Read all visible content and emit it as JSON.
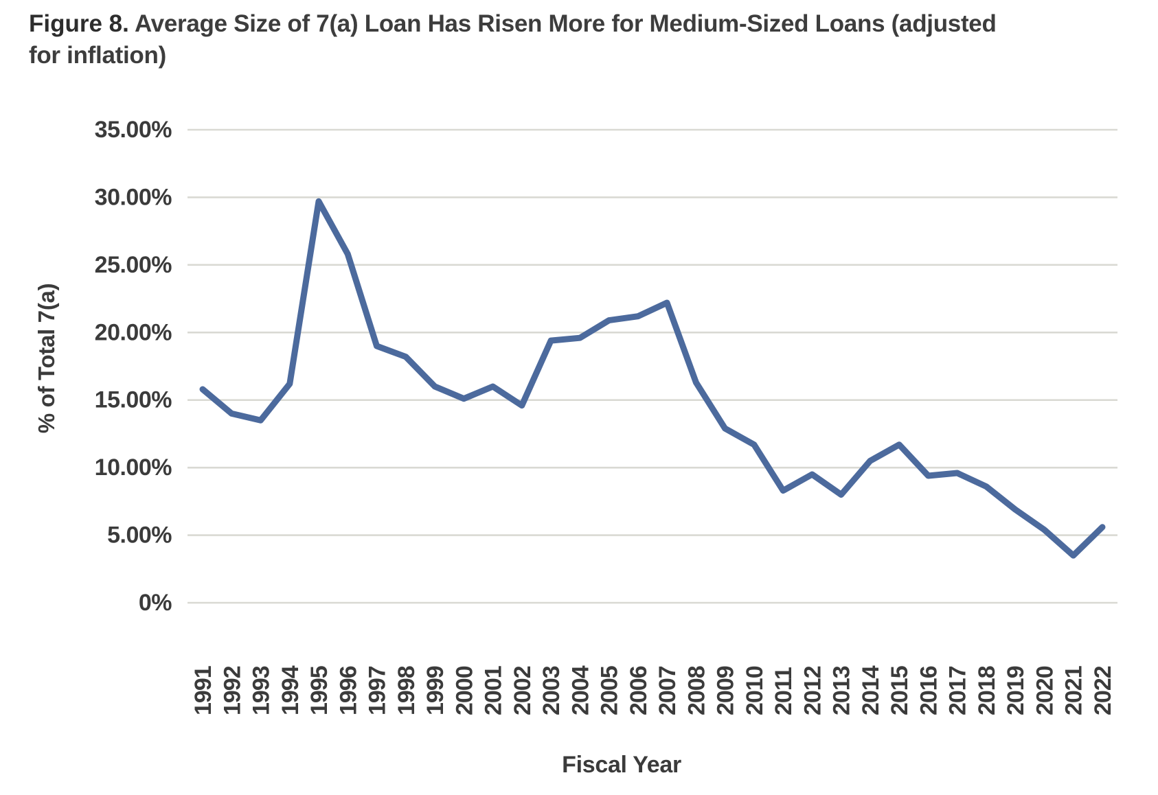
{
  "title": {
    "figure_label": "Figure 8.",
    "text": " Average Size of 7(a) Loan Has Risen More for Medium-Sized Loans (adjusted for inflation)"
  },
  "chart_data": {
    "type": "line",
    "title": "Figure 8. Average Size of 7(a) Loan Has Risen More for Medium-Sized Loans (adjusted for inflation)",
    "xlabel": "Fiscal Year",
    "ylabel": "% of Total 7(a)",
    "x": [
      1991,
      1992,
      1993,
      1994,
      1995,
      1996,
      1997,
      1998,
      1999,
      2000,
      2001,
      2002,
      2003,
      2004,
      2005,
      2006,
      2007,
      2008,
      2009,
      2010,
      2011,
      2012,
      2013,
      2014,
      2015,
      2016,
      2017,
      2018,
      2019,
      2020,
      2021,
      2022
    ],
    "series": [
      {
        "name": "% of Total 7(a)",
        "values": [
          15.8,
          14.0,
          13.5,
          16.2,
          29.7,
          25.8,
          19.0,
          18.2,
          16.0,
          15.1,
          16.0,
          14.6,
          19.4,
          19.6,
          20.9,
          21.2,
          22.2,
          16.3,
          12.9,
          11.7,
          8.3,
          9.5,
          8.0,
          10.5,
          11.7,
          9.4,
          9.6,
          8.6,
          6.9,
          5.4,
          3.5,
          5.6
        ]
      }
    ],
    "ylim": [
      0,
      35
    ],
    "y_ticks": {
      "values": [
        35,
        30,
        25,
        20,
        15,
        10,
        5,
        0
      ],
      "labels": [
        "35.00%",
        "30.00%",
        "25.00%",
        "20.00%",
        "15.00%",
        "10.00%",
        "5.00%",
        "0%"
      ]
    },
    "grid": "horizontal",
    "legend": "none",
    "colors": {
      "line": "#4C6A9D",
      "gridline": "#D9D9D3",
      "tick_text": "#3B3B3B",
      "title_text": "#2D2D2D",
      "background": "#FFFFFF"
    }
  }
}
